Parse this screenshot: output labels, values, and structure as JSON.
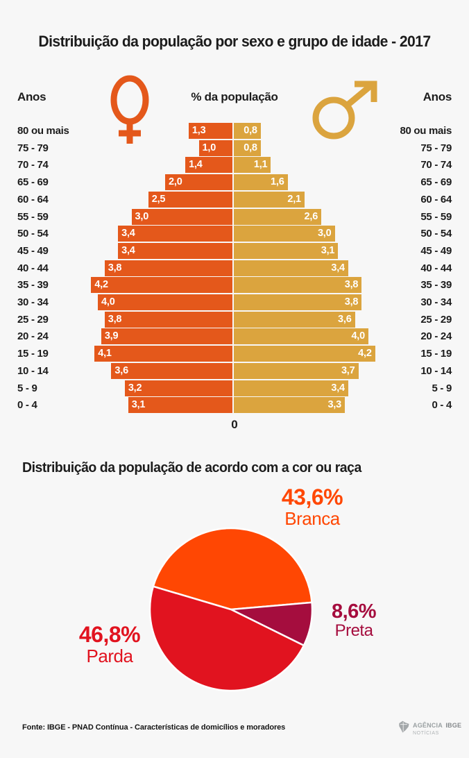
{
  "page": {
    "background": "#f7f7f7"
  },
  "pyramid": {
    "axis_label_left": "Anos",
    "axis_label_right": "Anos",
    "center_label": "% da população",
    "zero_label": "0",
    "female_color": "#E4581B",
    "male_color": "#DBA43E",
    "value_text_color": "#ffffff"
  },
  "chart_data": [
    {
      "type": "bar",
      "variant": "population-pyramid",
      "title": "Distribuição da população por sexo e grupo de idade - 2017",
      "xlabel": "% da população",
      "ylabel": "Anos",
      "axis_zero_label": "0",
      "xlim": [
        0,
        4.2
      ],
      "categories": [
        "80 ou mais",
        "75 - 79",
        "70 - 74",
        "65 - 69",
        "60 - 64",
        "55 - 59",
        "50 - 54",
        "45 - 49",
        "40 - 44",
        "35 - 39",
        "30 - 34",
        "25 - 29",
        "20 - 24",
        "15 - 19",
        "10 - 14",
        "5 - 9",
        "0 - 4"
      ],
      "series": [
        {
          "name": "female",
          "side": "left",
          "color": "#E4581B",
          "values": [
            1.3,
            1.0,
            1.4,
            2.0,
            2.5,
            3.0,
            3.4,
            3.4,
            3.8,
            4.2,
            4.0,
            3.8,
            3.9,
            4.1,
            3.6,
            3.2,
            3.1
          ]
        },
        {
          "name": "male",
          "side": "right",
          "color": "#DBA43E",
          "values": [
            0.8,
            0.8,
            1.1,
            1.6,
            2.1,
            2.6,
            3.0,
            3.1,
            3.4,
            3.8,
            3.8,
            3.6,
            4.0,
            4.2,
            3.7,
            3.4,
            3.3
          ]
        }
      ]
    },
    {
      "type": "pie",
      "title": "Distribuição da população de acordo com a cor ou raça",
      "start_angle_deg": 163.5,
      "separator_color": "#ffffff",
      "slices": [
        {
          "label": "Branca",
          "value": 43.6,
          "display": "43,6%",
          "color": "#FF4703"
        },
        {
          "label": "Preta",
          "value": 8.6,
          "display": "8,6%",
          "color": "#A50D3E"
        },
        {
          "label": "Parda",
          "value": 46.8,
          "display": "46,8%",
          "color": "#E1131F"
        }
      ]
    }
  ],
  "footer": {
    "source": "Fonte: IBGE - PNAD Contínua - Características de domicílios e moradores",
    "logo_agency": "AGÊNCIA",
    "logo_org": "IBGE",
    "logo_sub": "NOTÍCIAS"
  }
}
